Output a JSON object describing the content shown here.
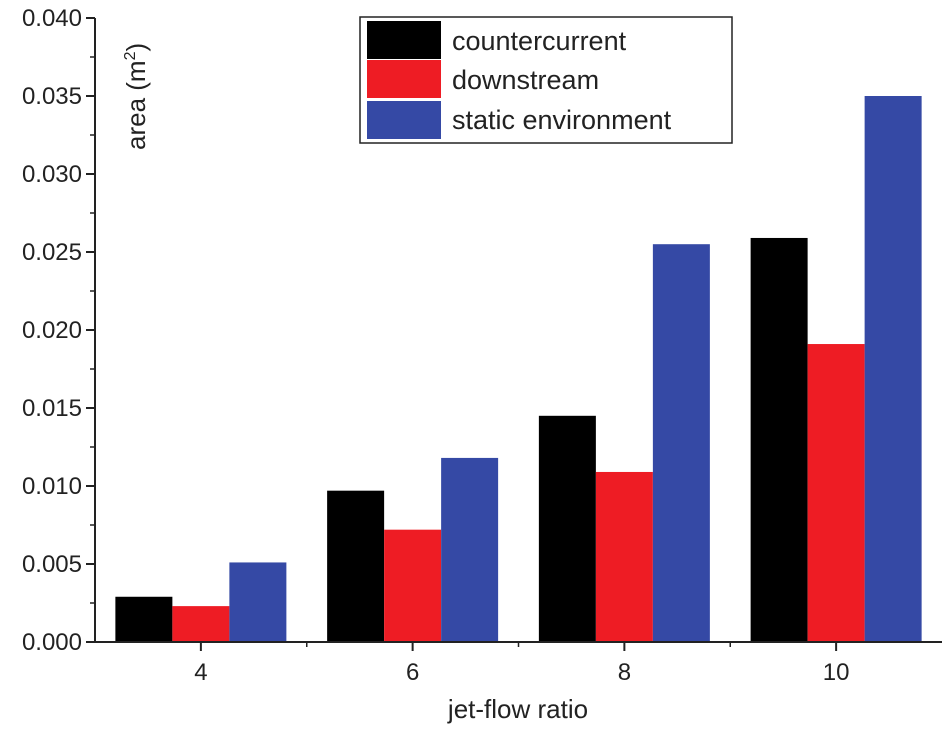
{
  "chart_data": {
    "type": "bar",
    "title": "",
    "xlabel": "jet-flow ratio",
    "ylabel": {
      "base": "area (m",
      "superscript": "2",
      "suffix": ")"
    },
    "categories": [
      "4",
      "6",
      "8",
      "10"
    ],
    "series": [
      {
        "name": "countercurrent",
        "color": "#000000",
        "values": [
          0.0029,
          0.0097,
          0.0145,
          0.0259
        ]
      },
      {
        "name": "downstream",
        "color": "#ee1c24",
        "values": [
          0.0023,
          0.0072,
          0.0109,
          0.0191
        ]
      },
      {
        "name": "static environment",
        "color": "#3549a5",
        "values": [
          0.0051,
          0.0118,
          0.0255,
          0.035
        ]
      }
    ],
    "ylim": [
      0.0,
      0.04
    ],
    "yticks": [
      "0.000",
      "0.005",
      "0.010",
      "0.015",
      "0.020",
      "0.025",
      "0.030",
      "0.035",
      "0.040"
    ],
    "grid": false,
    "legend_position": "top-center"
  }
}
